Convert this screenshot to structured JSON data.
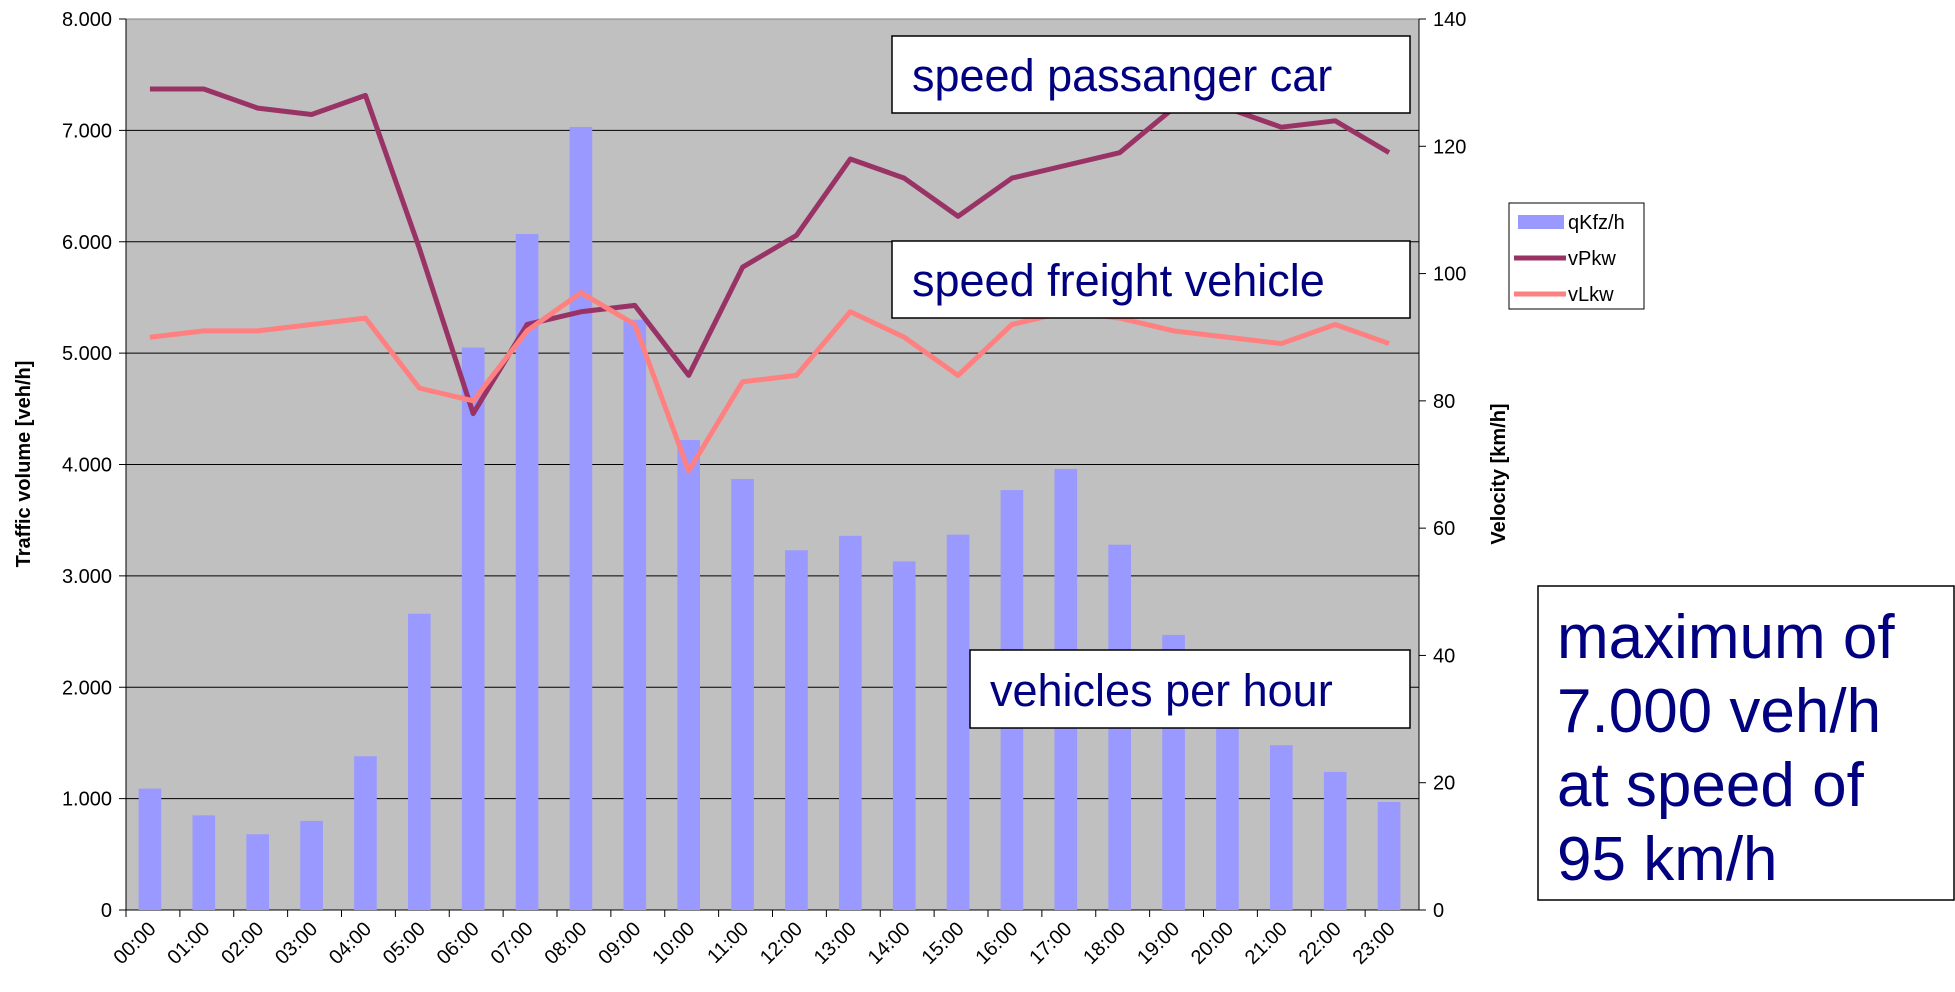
{
  "chart_data": {
    "type": "bar_line",
    "categories": [
      "00:00",
      "01:00",
      "02:00",
      "03:00",
      "04:00",
      "05:00",
      "06:00",
      "07:00",
      "08:00",
      "09:00",
      "10:00",
      "11:00",
      "12:00",
      "13:00",
      "14:00",
      "15:00",
      "16:00",
      "17:00",
      "18:00",
      "19:00",
      "20:00",
      "21:00",
      "22:00",
      "23:00"
    ],
    "series": [
      {
        "name": "qKfz/h",
        "type": "bar",
        "color": "#9999ff",
        "values": [
          1090,
          850,
          680,
          800,
          1380,
          2660,
          5050,
          6070,
          7030,
          5300,
          4220,
          3870,
          3230,
          3360,
          3130,
          3370,
          3770,
          3960,
          3280,
          2470,
          1750,
          1480,
          1240,
          970
        ]
      },
      {
        "name": "vPkw",
        "type": "line",
        "axis": "y2",
        "color": "#993366",
        "values": [
          129,
          129,
          126,
          125,
          128,
          104,
          78,
          92,
          94,
          95,
          84,
          101,
          106,
          118,
          115,
          109,
          115,
          117,
          119,
          126,
          126,
          123,
          124,
          119
        ]
      },
      {
        "name": "vLkw",
        "type": "line",
        "axis": "y2",
        "color": "#ff8080",
        "values": [
          90,
          91,
          91,
          92,
          93,
          82,
          80,
          91,
          97,
          92,
          69,
          83,
          84,
          94,
          90,
          84,
          92,
          94,
          93,
          91,
          90,
          89,
          92,
          89
        ]
      }
    ],
    "ylabel": "Traffic volume [veh/h]",
    "y2label": "Velocity [km/h]",
    "ylim": [
      0,
      8000
    ],
    "yticks": [
      0,
      {
        "value": 1000,
        "label": "1.000"
      },
      {
        "value": 2000,
        "label": "2.000"
      },
      {
        "value": 3000,
        "label": "3.000"
      },
      {
        "value": 4000,
        "label": "4.000"
      },
      {
        "value": 5000,
        "label": "5.000"
      },
      {
        "value": 6000,
        "label": "6.000"
      },
      {
        "value": 7000,
        "label": "7.000"
      },
      {
        "value": 8000,
        "label": "8.000"
      }
    ],
    "y2lim": [
      0,
      140
    ],
    "y2ticks": [
      0,
      20,
      40,
      60,
      80,
      100,
      120,
      140
    ],
    "grid": true,
    "legend": "right",
    "annotations": [
      "speed passanger car",
      "speed freight vehicle",
      "vehicles per hour",
      "maximum of",
      "7.000 veh/h",
      "at speed of",
      "95 km/h"
    ]
  }
}
